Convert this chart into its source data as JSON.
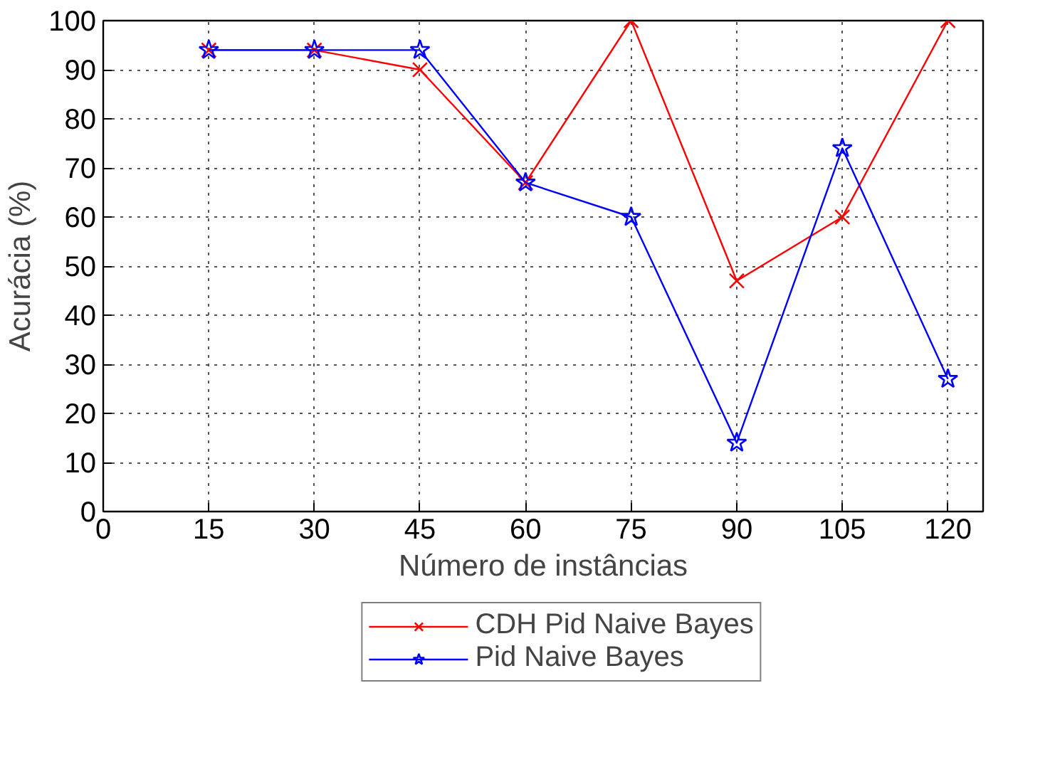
{
  "chart_data": {
    "type": "line",
    "xlabel": "Número de instâncias",
    "ylabel": "Acurácia (%)",
    "x": [
      15,
      30,
      45,
      60,
      75,
      90,
      105,
      120
    ],
    "series": [
      {
        "name": "CDH Pid Naive Bayes",
        "color": "#ff0000",
        "marker": "cross",
        "values": [
          94,
          94,
          90,
          67,
          100,
          47,
          60,
          100
        ]
      },
      {
        "name": "Pid Naive Bayes",
        "color": "#0000ff",
        "marker": "star",
        "values": [
          94,
          94,
          94,
          67,
          60,
          14,
          74,
          27
        ]
      }
    ],
    "xlim": [
      0,
      125
    ],
    "xticks": [
      0,
      15,
      30,
      45,
      60,
      75,
      90,
      105,
      120
    ],
    "ylim": [
      0,
      100
    ],
    "yticks": [
      0,
      10,
      20,
      30,
      40,
      50,
      60,
      70,
      80,
      90,
      100
    ],
    "grid": true,
    "legend": "bottom",
    "line_style": "solid"
  }
}
